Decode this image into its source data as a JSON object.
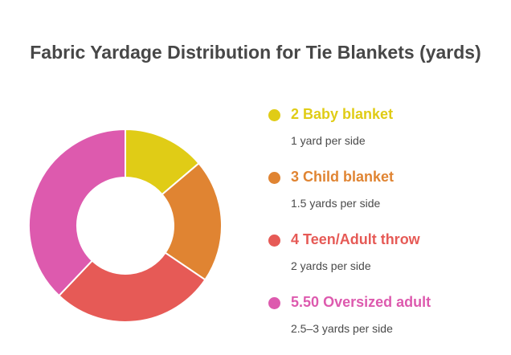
{
  "chart_data": {
    "type": "pie",
    "title": "Fabric Yardage Distribution for Tie Blankets (yards)",
    "categories": [
      "Baby blanket",
      "Child blanket",
      "Teen/Adult throw",
      "Oversized adult"
    ],
    "values": [
      2,
      3,
      4,
      5.5
    ],
    "value_labels": [
      "2",
      "3",
      "4",
      "5.50"
    ],
    "descriptions": [
      "1 yard per side",
      "1.5 yards per side",
      "2 yards per side",
      "2.5–3 yards per side"
    ],
    "colors": [
      "#e0cc16",
      "#e08432",
      "#e65a56",
      "#dd5aae"
    ],
    "legend_position": "right",
    "style": "donut"
  }
}
